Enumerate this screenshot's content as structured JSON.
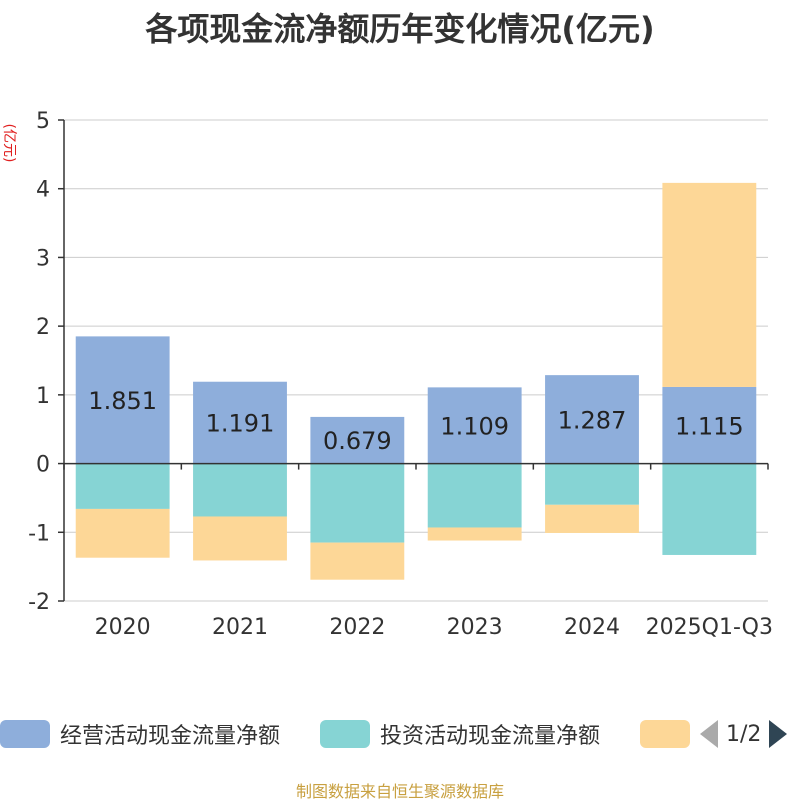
{
  "chart_data": {
    "type": "bar",
    "stacked": true,
    "title": "各项现金流净额历年变化情况(亿元)",
    "ylabel": "(亿元)",
    "ylim": [
      -2,
      5
    ],
    "yticks": [
      -2,
      -1,
      0,
      1,
      2,
      3,
      4,
      5
    ],
    "categories": [
      "2020",
      "2021",
      "2022",
      "2023",
      "2024",
      "2025Q1-Q3"
    ],
    "series": [
      {
        "name": "经营活动现金流量净额",
        "color": "#8eaedb",
        "values": [
          1.851,
          1.191,
          0.679,
          1.109,
          1.287,
          1.115
        ],
        "show_labels": true
      },
      {
        "name": "投资活动现金流量净额",
        "color": "#86d4d4",
        "values": [
          -0.66,
          -0.77,
          -1.15,
          -0.93,
          -0.6,
          -1.33
        ],
        "show_labels": false
      },
      {
        "name": "",
        "color": "#fdd797",
        "values": [
          -0.71,
          -0.64,
          -0.54,
          -0.19,
          -0.41,
          2.97
        ],
        "show_labels": false
      }
    ],
    "legend_position": "bottom"
  },
  "legend": {
    "page": "1/2"
  },
  "source": "制图数据来自恒生聚源数据库"
}
